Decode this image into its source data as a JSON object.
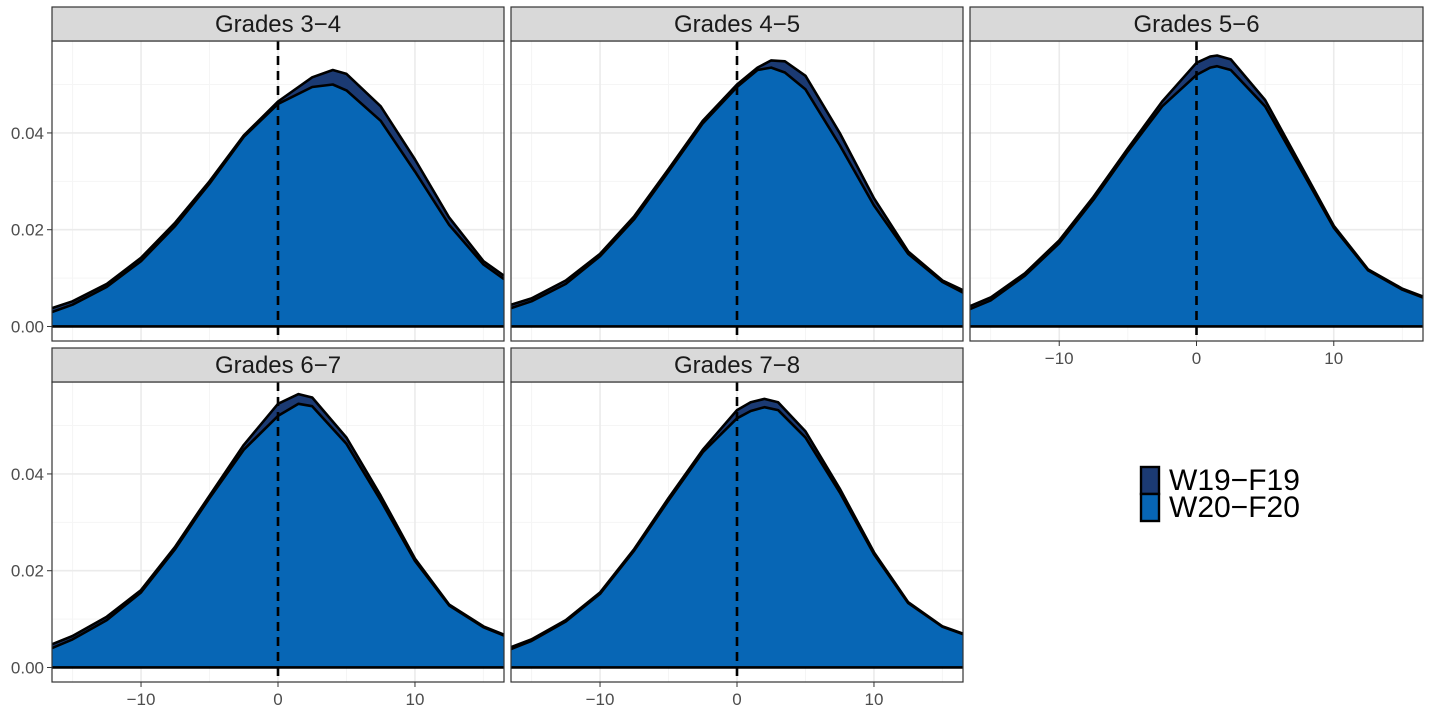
{
  "chart_data": {
    "type": "area",
    "layout": "facet-grid",
    "x_range": [
      -16.5,
      16.5
    ],
    "y_range": [
      -0.003,
      0.059
    ],
    "x_ticks": [
      {
        "value": -10,
        "label": "−10"
      },
      {
        "value": 0,
        "label": "0"
      },
      {
        "value": 10,
        "label": "10"
      }
    ],
    "y_ticks": [
      {
        "value": 0,
        "label": "0.00"
      },
      {
        "value": 0.02,
        "label": "0.02"
      },
      {
        "value": 0.04,
        "label": "0.04"
      }
    ],
    "minor_x": [
      -15,
      -5,
      5,
      15
    ],
    "minor_y": [
      0.01,
      0.03,
      0.05
    ],
    "reference_line_x": 0,
    "grid": true,
    "legend_position": "right",
    "colors": {
      "W19-F19": "#1b3a73",
      "W20-F20": "#0766b5",
      "strip_bg": "#d9d9d9",
      "grid_major": "#ebebeb",
      "grid_minor": "#f5f5f5",
      "outline": "#000000"
    },
    "legend": [
      {
        "label": "W19−F19",
        "color": "#1b3a73"
      },
      {
        "label": "W20−F20",
        "color": "#0766b5"
      }
    ],
    "series_keys": [
      "W19-F19",
      "W20-F20"
    ],
    "facets": [
      {
        "label": "Grades 3−4",
        "x": [
          -16.5,
          -15,
          -12.5,
          -10,
          -7.5,
          -5,
          -2.5,
          0,
          2.5,
          4,
          5,
          7.5,
          10,
          12.5,
          15,
          16.5
        ],
        "series": [
          {
            "key": "W19-F19",
            "values": [
              0.0038,
              0.0052,
              0.0088,
              0.0142,
              0.0215,
              0.03,
              0.0395,
              0.0465,
              0.0515,
              0.053,
              0.0522,
              0.0455,
              0.0345,
              0.0225,
              0.0135,
              0.0105
            ]
          },
          {
            "key": "W20-F20",
            "values": [
              0.003,
              0.0045,
              0.0082,
              0.0135,
              0.0208,
              0.0295,
              0.0392,
              0.046,
              0.0495,
              0.05,
              0.0488,
              0.0425,
              0.032,
              0.021,
              0.0128,
              0.0098
            ]
          }
        ]
      },
      {
        "label": "Grades 4−5",
        "x": [
          -16.5,
          -15,
          -12.5,
          -10,
          -7.5,
          -5,
          -2.5,
          0,
          1.5,
          2.5,
          3.5,
          5,
          7.5,
          10,
          12.5,
          15,
          16.5
        ],
        "series": [
          {
            "key": "W19-F19",
            "values": [
              0.0045,
              0.0058,
              0.0095,
              0.015,
              0.0228,
              0.0325,
              0.0425,
              0.05,
              0.0535,
              0.055,
              0.0548,
              0.0518,
              0.04,
              0.0265,
              0.0155,
              0.0095,
              0.0075
            ]
          },
          {
            "key": "W20-F20",
            "values": [
              0.0038,
              0.0052,
              0.0088,
              0.0145,
              0.0222,
              0.032,
              0.042,
              0.0495,
              0.053,
              0.0535,
              0.0525,
              0.049,
              0.0375,
              0.025,
              0.015,
              0.0092,
              0.007
            ]
          }
        ]
      },
      {
        "label": "Grades 5−6",
        "x": [
          -16.5,
          -15,
          -12.5,
          -10,
          -7.5,
          -5,
          -2.5,
          0,
          1,
          1.5,
          2.5,
          5,
          7.5,
          10,
          12.5,
          15,
          16.5
        ],
        "series": [
          {
            "key": "W19-F19",
            "values": [
              0.0042,
              0.006,
              0.011,
              0.0178,
              0.0268,
              0.0368,
              0.0465,
              0.0545,
              0.0558,
              0.056,
              0.0552,
              0.0468,
              0.0338,
              0.0208,
              0.0118,
              0.0078,
              0.0062
            ]
          },
          {
            "key": "W20-F20",
            "values": [
              0.0036,
              0.0054,
              0.0105,
              0.0172,
              0.0262,
              0.0362,
              0.0455,
              0.052,
              0.0535,
              0.0538,
              0.053,
              0.0455,
              0.033,
              0.0204,
              0.0116,
              0.0076,
              0.006
            ]
          }
        ]
      },
      {
        "label": "Grades 6−7",
        "x": [
          -16.5,
          -15,
          -12.5,
          -10,
          -7.5,
          -5,
          -2.5,
          0,
          1.5,
          2.5,
          5,
          7.5,
          10,
          12.5,
          15,
          16.5
        ],
        "series": [
          {
            "key": "W19-F19",
            "values": [
              0.0048,
              0.0065,
              0.0105,
              0.016,
              0.025,
              0.0355,
              0.046,
              0.0545,
              0.0565,
              0.0558,
              0.0475,
              0.0355,
              0.0225,
              0.013,
              0.0085,
              0.0068
            ]
          },
          {
            "key": "W20-F20",
            "values": [
              0.004,
              0.0058,
              0.0098,
              0.0155,
              0.0245,
              0.035,
              0.045,
              0.052,
              0.0545,
              0.054,
              0.0462,
              0.0345,
              0.022,
              0.0128,
              0.0083,
              0.0066
            ]
          }
        ]
      },
      {
        "label": "Grades 7−8",
        "x": [
          -16.5,
          -15,
          -12.5,
          -10,
          -7.5,
          -5,
          -2.5,
          0,
          1,
          2,
          3,
          5,
          7.5,
          10,
          12.5,
          15,
          16.5
        ],
        "series": [
          {
            "key": "W19-F19",
            "values": [
              0.0042,
              0.0058,
              0.0098,
              0.0155,
              0.0245,
              0.035,
              0.045,
              0.0532,
              0.0548,
              0.0555,
              0.0548,
              0.0488,
              0.037,
              0.0238,
              0.0135,
              0.0085,
              0.007
            ]
          },
          {
            "key": "W20-F20",
            "values": [
              0.0038,
              0.0055,
              0.0095,
              0.0152,
              0.0242,
              0.0345,
              0.0445,
              0.0515,
              0.053,
              0.0538,
              0.0532,
              0.0475,
              0.0362,
              0.0234,
              0.0133,
              0.0084,
              0.0069
            ]
          }
        ]
      }
    ]
  }
}
